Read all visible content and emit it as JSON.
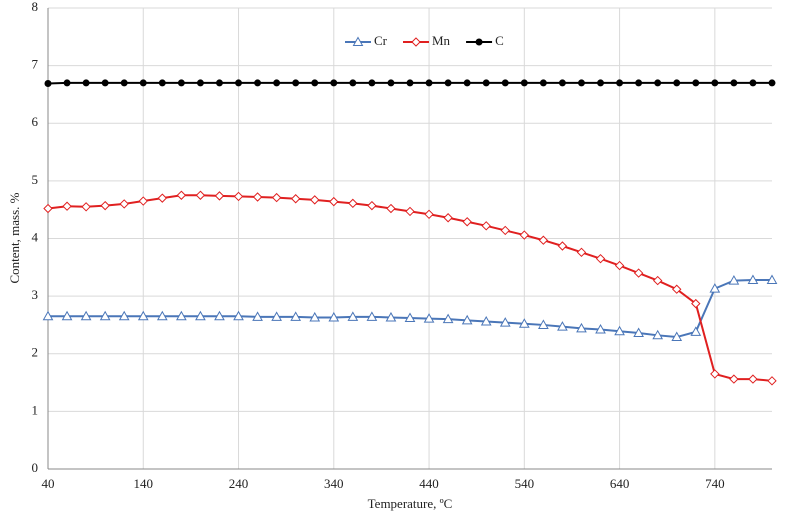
{
  "chart_data": {
    "type": "line",
    "x_label": "Temperature, ºC",
    "y_label": "Content, mass. %",
    "x": [
      40,
      60,
      80,
      100,
      120,
      140,
      160,
      180,
      200,
      220,
      240,
      260,
      280,
      300,
      320,
      340,
      360,
      380,
      400,
      420,
      440,
      460,
      480,
      500,
      520,
      540,
      560,
      580,
      600,
      620,
      640,
      660,
      680,
      700,
      720,
      740,
      760,
      780,
      800
    ],
    "series": [
      {
        "name": "Cr",
        "color": "#4a76b8",
        "marker": "triangle",
        "values": [
          2.65,
          2.65,
          2.65,
          2.65,
          2.65,
          2.65,
          2.65,
          2.65,
          2.65,
          2.65,
          2.65,
          2.64,
          2.64,
          2.64,
          2.63,
          2.63,
          2.64,
          2.64,
          2.63,
          2.62,
          2.61,
          2.6,
          2.58,
          2.56,
          2.54,
          2.52,
          2.5,
          2.47,
          2.44,
          2.42,
          2.39,
          2.36,
          2.32,
          2.29,
          2.38,
          3.13,
          3.27,
          3.28,
          3.28
        ]
      },
      {
        "name": "Mn",
        "color": "#e02020",
        "marker": "diamond",
        "values": [
          4.52,
          4.56,
          4.55,
          4.57,
          4.6,
          4.65,
          4.7,
          4.75,
          4.75,
          4.74,
          4.73,
          4.72,
          4.71,
          4.69,
          4.67,
          4.64,
          4.61,
          4.57,
          4.52,
          4.47,
          4.42,
          4.36,
          4.29,
          4.22,
          4.14,
          4.06,
          3.97,
          3.87,
          3.76,
          3.65,
          3.53,
          3.4,
          3.27,
          3.12,
          2.87,
          1.65,
          1.56,
          1.56,
          1.53
        ]
      },
      {
        "name": "C",
        "color": "#000000",
        "marker": "circle",
        "values": [
          6.69,
          6.7,
          6.7,
          6.7,
          6.7,
          6.7,
          6.7,
          6.7,
          6.7,
          6.7,
          6.7,
          6.7,
          6.7,
          6.7,
          6.7,
          6.7,
          6.7,
          6.7,
          6.7,
          6.7,
          6.7,
          6.7,
          6.7,
          6.7,
          6.7,
          6.7,
          6.7,
          6.7,
          6.7,
          6.7,
          6.7,
          6.7,
          6.7,
          6.7,
          6.7,
          6.7,
          6.7,
          6.7,
          6.7
        ]
      }
    ],
    "xlim": [
      40,
      800
    ],
    "xticks": [
      40,
      140,
      240,
      340,
      440,
      540,
      640,
      740
    ],
    "ylim": [
      0,
      8
    ],
    "yticks": [
      0,
      1,
      2,
      3,
      4,
      5,
      6,
      7,
      8
    ],
    "grid": true,
    "legend": "top"
  }
}
